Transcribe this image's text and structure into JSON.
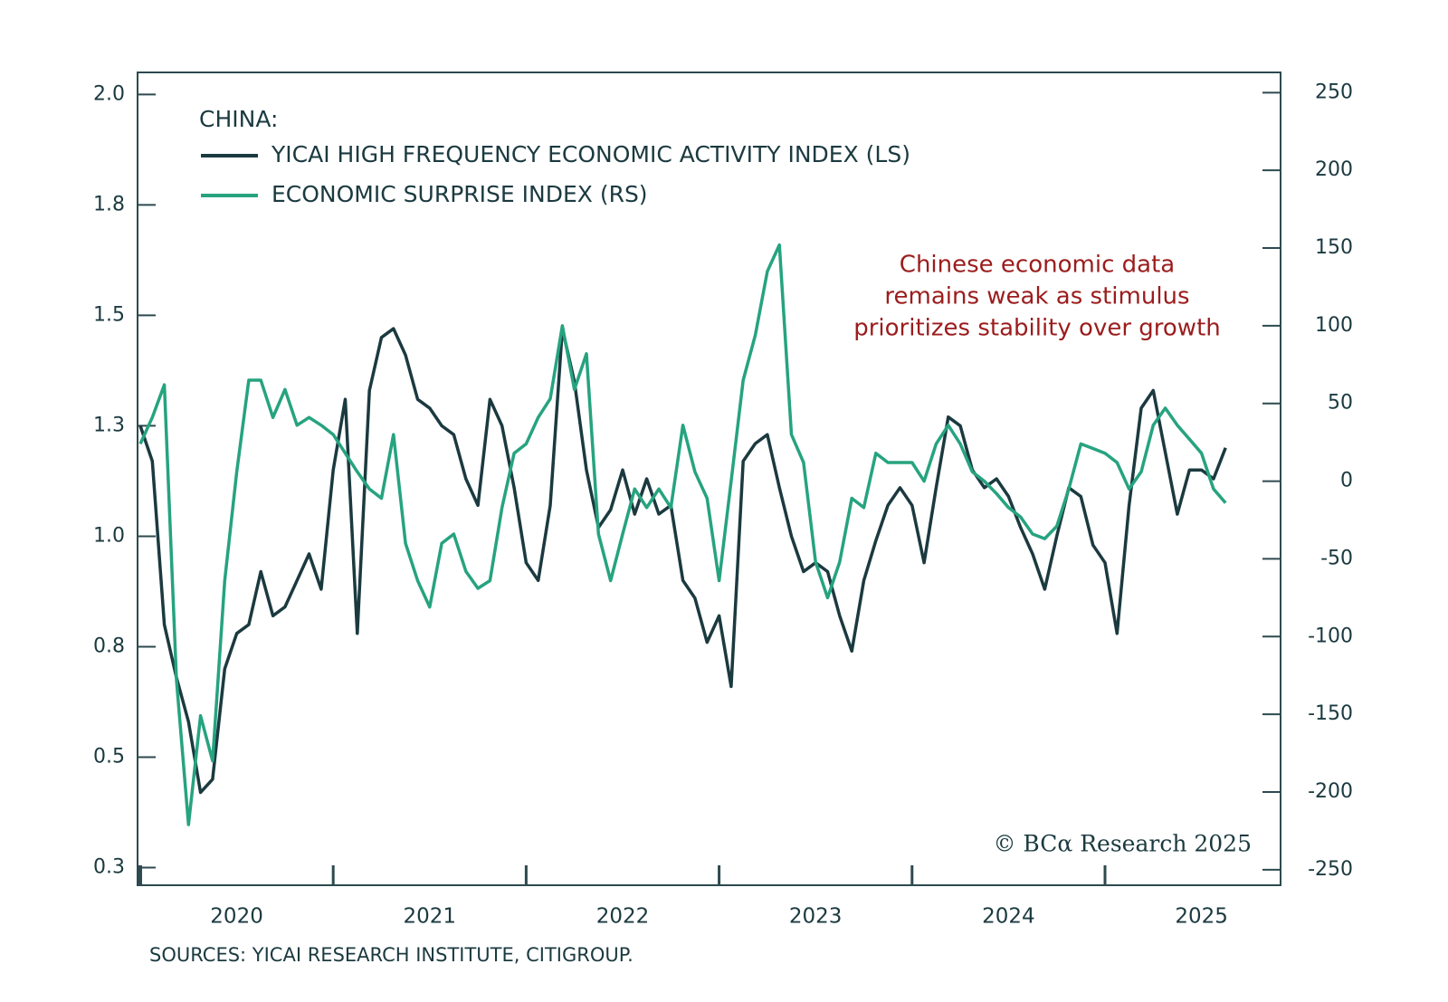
{
  "chart_data": {
    "type": "line",
    "legend_title": "CHINA:",
    "annotation": [
      "Chinese economic data",
      "remains weak as stimulus",
      "prioritizes stability over growth"
    ],
    "copyright": "© BCα Research 2025",
    "source": "SOURCES: YICAI RESEARCH INSTITUTE, CITIGROUP.",
    "x": [
      2020,
      2020.0625,
      2020.125,
      2020.1875,
      2020.25,
      2020.3125,
      2020.375,
      2020.4375,
      2020.5,
      2020.5625,
      2020.625,
      2020.6875,
      2020.75,
      2020.8125,
      2020.875,
      2020.9375,
      2021,
      2021.0625,
      2021.125,
      2021.1875,
      2021.25,
      2021.3125,
      2021.375,
      2021.4375,
      2021.5,
      2021.5625,
      2021.625,
      2021.6875,
      2021.75,
      2021.8125,
      2021.875,
      2021.9375,
      2022,
      2022.0625,
      2022.125,
      2022.1875,
      2022.25,
      2022.3125,
      2022.375,
      2022.4375,
      2022.5,
      2022.5625,
      2022.625,
      2022.6875,
      2022.75,
      2022.8125,
      2022.875,
      2022.9375,
      2023,
      2023.0625,
      2023.125,
      2023.1875,
      2023.25,
      2023.3125,
      2023.375,
      2023.4375,
      2023.5,
      2023.5625,
      2023.625,
      2023.6875,
      2023.75,
      2023.8125,
      2023.875,
      2023.9375,
      2024,
      2024.0625,
      2024.125,
      2024.1875,
      2024.25,
      2024.3125,
      2024.375,
      2024.4375,
      2024.5,
      2024.5625,
      2024.625,
      2024.6875,
      2024.75,
      2024.8125,
      2024.875,
      2024.9375,
      2025,
      2025.0625,
      2025.125,
      2025.1875,
      2025.25,
      2025.3125,
      2025.375,
      2025.4375,
      2025.5,
      2025.5625,
      2025.625
    ],
    "series": [
      {
        "name": "YICAI HIGH FREQUENCY ECONOMIC ACTIVITY INDEX (LS)",
        "color": "#1b3a40",
        "values": [
          1.25,
          1.17,
          0.8,
          0.68,
          0.58,
          0.42,
          0.45,
          0.7,
          0.78,
          0.8,
          0.92,
          0.82,
          0.84,
          0.9,
          0.96,
          0.88,
          1.15,
          1.31,
          0.78,
          1.33,
          1.45,
          1.47,
          1.41,
          1.31,
          1.29,
          1.25,
          1.23,
          1.13,
          1.07,
          1.31,
          1.25,
          1.11,
          0.94,
          0.9,
          1.07,
          1.47,
          1.35,
          1.15,
          1.02,
          1.06,
          1.15,
          1.05,
          1.13,
          1.05,
          1.07,
          0.9,
          0.86,
          0.76,
          0.82,
          0.66,
          1.17,
          1.21,
          1.23,
          1.11,
          1.0,
          0.92,
          0.94,
          0.92,
          0.82,
          0.74,
          0.9,
          0.99,
          1.07,
          1.11,
          1.07,
          0.94,
          1.11,
          1.27,
          1.25,
          1.15,
          1.11,
          1.13,
          1.09,
          1.02,
          0.96,
          0.88,
          1.0,
          1.11,
          1.09,
          0.98,
          0.94,
          0.78,
          1.07,
          1.29,
          1.33,
          1.19,
          1.05,
          1.15,
          1.15,
          1.13,
          1.2
        ]
      },
      {
        "name": "ECONOMIC SURPRISE INDEX (RS)",
        "color": "#26a37f",
        "axis": "y2",
        "values": [
          24,
          41,
          62,
          -128,
          -221,
          -151,
          -180,
          -64,
          6,
          65,
          65,
          41,
          59,
          36,
          41,
          36,
          30,
          18,
          6,
          -5,
          -11,
          30,
          -40,
          -64,
          -81,
          -40,
          -34,
          -58,
          -69,
          -64,
          -17,
          18,
          24,
          41,
          53,
          100,
          59,
          82,
          -34,
          -64,
          -34,
          -5,
          -17,
          -5,
          -17,
          36,
          6,
          -11,
          -64,
          0,
          65,
          94,
          135,
          152,
          30,
          12,
          -52,
          -75,
          -52,
          -11,
          -17,
          18,
          12,
          12,
          12,
          0,
          24,
          36,
          24,
          6,
          0,
          -8,
          -17,
          -23,
          -34,
          -37,
          -29,
          -5,
          24,
          21,
          18,
          12,
          -5,
          6,
          36,
          47,
          36,
          27,
          18,
          -5,
          -14
        ]
      }
    ],
    "xlim": [
      2019.986,
      2025.91
    ],
    "xticks": [
      2020,
      2021,
      2022,
      2023,
      2024,
      2025
    ],
    "ylim": [
      0.21,
      2.05
    ],
    "yticks": [
      {
        "value": 0.25,
        "label": "0.3"
      },
      0.5,
      {
        "value": 0.75,
        "label": "0.8"
      },
      {
        "value": 1,
        "label": "1.0"
      },
      {
        "value": 1.25,
        "label": "1.3"
      },
      1.5,
      {
        "value": 1.75,
        "label": "1.8"
      },
      {
        "value": 2,
        "label": "2.0"
      }
    ],
    "y2lim": [
      -260,
      263
    ],
    "y2ticks": [
      -250,
      -200,
      -150,
      -100,
      -50,
      0,
      50,
      100,
      150,
      200,
      250
    ],
    "annotation_color": "#9b1c1c",
    "axis_color": "#2d4a4f"
  }
}
